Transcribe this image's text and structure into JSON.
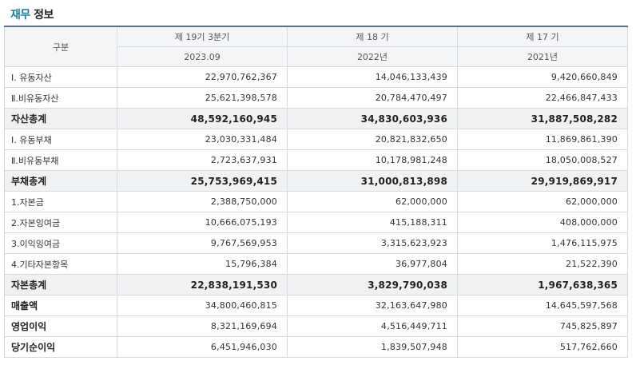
{
  "section": {
    "title_accent": "재무",
    "title_rest": "정보"
  },
  "header": {
    "row_label": "구분",
    "periods": [
      {
        "label": "제 19기 3분기",
        "date": "2023.09"
      },
      {
        "label": "제 18 기",
        "date": "2022년"
      },
      {
        "label": "제 17 기",
        "date": "2021년"
      }
    ]
  },
  "rows": [
    {
      "label": "Ⅰ. 유동자산",
      "v": [
        "22,970,762,367",
        "14,046,133,439",
        "9,420,660,849"
      ],
      "style": "normal"
    },
    {
      "label": "Ⅱ.비유동자산",
      "v": [
        "25,621,398,578",
        "20,784,470,497",
        "22,466,847,433"
      ],
      "style": "normal"
    },
    {
      "label": "자산총계",
      "v": [
        "48,592,160,945",
        "34,830,603,936",
        "31,887,508,282"
      ],
      "style": "total"
    },
    {
      "label": "Ⅰ. 유동부채",
      "v": [
        "23,030,331,484",
        "20,821,832,650",
        "11,869,861,390"
      ],
      "style": "normal"
    },
    {
      "label": "Ⅱ.비유동부채",
      "v": [
        "2,723,637,931",
        "10,178,981,248",
        "18,050,008,527"
      ],
      "style": "normal"
    },
    {
      "label": "부채총계",
      "v": [
        "25,753,969,415",
        "31,000,813,898",
        "29,919,869,917"
      ],
      "style": "total"
    },
    {
      "label": "1.자본금",
      "v": [
        "2,388,750,000",
        "62,000,000",
        "62,000,000"
      ],
      "style": "normal"
    },
    {
      "label": "2.자본잉여금",
      "v": [
        "10,666,075,193",
        "415,188,311",
        "408,000,000"
      ],
      "style": "normal"
    },
    {
      "label": "3.이익잉여금",
      "v": [
        "9,767,569,953",
        "3,315,623,923",
        "1,476,115,975"
      ],
      "style": "normal"
    },
    {
      "label": "4.기타자본항목",
      "v": [
        "15,796,384",
        "36,977,804",
        "21,522,390"
      ],
      "style": "normal"
    },
    {
      "label": "자본총계",
      "v": [
        "22,838,191,530",
        "3,829,790,038",
        "1,967,638,365"
      ],
      "style": "total"
    },
    {
      "label": "매출액",
      "v": [
        "34,800,460,815",
        "32,163,647,980",
        "14,645,597,568"
      ],
      "style": "bold"
    },
    {
      "label": "영업이익",
      "v": [
        "8,321,169,694",
        "4,516,449,711",
        "745,825,897"
      ],
      "style": "bold"
    },
    {
      "label": "당기순이익",
      "v": [
        "6,451,946,030",
        "1,839,507,948",
        "517,762,660"
      ],
      "style": "bold"
    }
  ]
}
